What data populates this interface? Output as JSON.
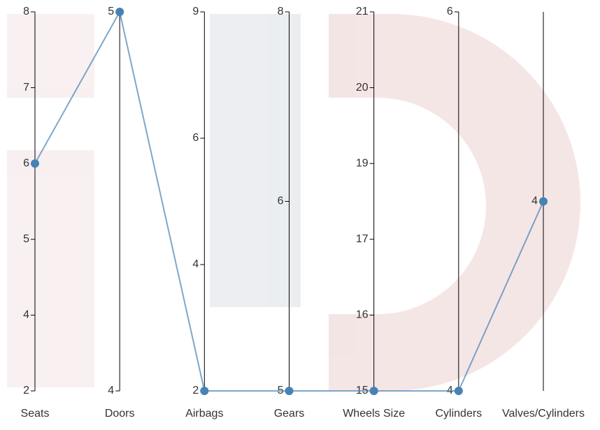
{
  "chart_data": {
    "type": "parallel",
    "dimensions": [
      {
        "name": "Seats",
        "ticks": [
          2,
          4,
          5,
          6,
          7,
          8
        ]
      },
      {
        "name": "Doors",
        "ticks": [
          4,
          5
        ]
      },
      {
        "name": "Airbags",
        "ticks": [
          2,
          4,
          6,
          9
        ]
      },
      {
        "name": "Gears",
        "ticks": [
          5,
          6,
          8
        ]
      },
      {
        "name": "Wheels Size",
        "ticks": [
          15,
          16,
          17,
          19,
          20,
          21
        ]
      },
      {
        "name": "Cylinders",
        "ticks": [
          4,
          6
        ]
      },
      {
        "name": "Valves/Cylinders",
        "ticks": [
          4
        ]
      }
    ],
    "series": [
      {
        "color": "#4682b4",
        "values": [
          6,
          5,
          2,
          5,
          15,
          4,
          4
        ]
      }
    ]
  }
}
